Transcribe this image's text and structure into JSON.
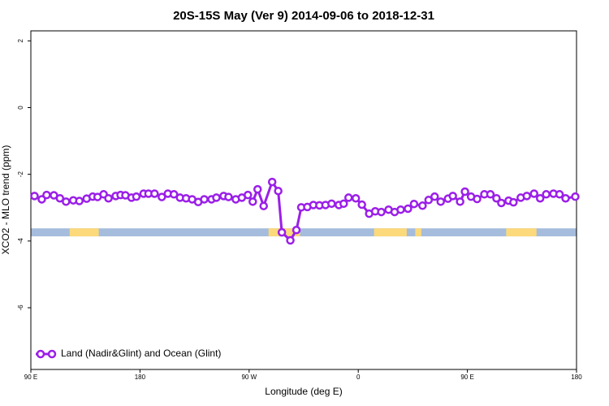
{
  "chart_data": {
    "type": "line",
    "title": "20S-15S May (Ver 9)   2014-09-06 to 2018-12-31",
    "xlabel": "Longitude (deg E)",
    "ylabel": "XCO2 - MLO trend (ppm)",
    "xlim": [
      90,
      540
    ],
    "ylim": [
      -7.85,
      2.3
    ],
    "xticks": [
      {
        "value": 90,
        "label": "90 E"
      },
      180,
      {
        "value": 270,
        "label": "90 W"
      },
      {
        "value": 360,
        "label": "0"
      },
      {
        "value": 450,
        "label": "90 E"
      },
      {
        "value": 540,
        "label": "180"
      }
    ],
    "yticks": [
      2,
      0,
      -2,
      -4,
      -6
    ],
    "legend": "bottom-left",
    "x": [
      93,
      99,
      103,
      109,
      114,
      119,
      125,
      130,
      136,
      141,
      145,
      150,
      154,
      160,
      164,
      168,
      173,
      177,
      183,
      187,
      192,
      198,
      203,
      208,
      213,
      218,
      223,
      228,
      233,
      239,
      243,
      249,
      253,
      259,
      264,
      269,
      273,
      277,
      282,
      289,
      294,
      297,
      304,
      309,
      313,
      318,
      323,
      328,
      333,
      338,
      344,
      348,
      352,
      358,
      363,
      369,
      374,
      379,
      385,
      390,
      395,
      401,
      406,
      413,
      418,
      423,
      428,
      434,
      438,
      444,
      448,
      453,
      458,
      464,
      469,
      474,
      478,
      484,
      488,
      494,
      499,
      505,
      510,
      515,
      521,
      526,
      531,
      539
    ],
    "series": [
      {
        "name": "Land (Nadir&Glint) and Ocean (Glint)",
        "color": "#9b1fe8",
        "values": [
          -2.65,
          -2.75,
          -2.62,
          -2.63,
          -2.72,
          -2.82,
          -2.78,
          -2.8,
          -2.73,
          -2.67,
          -2.68,
          -2.6,
          -2.72,
          -2.65,
          -2.62,
          -2.63,
          -2.7,
          -2.67,
          -2.58,
          -2.58,
          -2.58,
          -2.68,
          -2.58,
          -2.6,
          -2.7,
          -2.72,
          -2.75,
          -2.83,
          -2.75,
          -2.75,
          -2.7,
          -2.65,
          -2.68,
          -2.75,
          -2.7,
          -2.62,
          -2.82,
          -2.45,
          -2.95,
          -2.23,
          -2.5,
          -3.74,
          -3.98,
          -3.67,
          -2.99,
          -2.98,
          -2.92,
          -2.93,
          -2.92,
          -2.88,
          -2.92,
          -2.88,
          -2.7,
          -2.72,
          -2.91,
          -3.18,
          -3.11,
          -3.13,
          -3.06,
          -3.13,
          -3.06,
          -3.03,
          -2.89,
          -2.94,
          -2.77,
          -2.67,
          -2.82,
          -2.73,
          -2.65,
          -2.82,
          -2.52,
          -2.67,
          -2.74,
          -2.6,
          -2.6,
          -2.72,
          -2.86,
          -2.79,
          -2.84,
          -2.7,
          -2.65,
          -2.58,
          -2.72,
          -2.6,
          -2.58,
          -2.6,
          -2.72,
          -2.67
        ]
      }
    ],
    "band": {
      "y": [
        -3.86,
        -3.62
      ],
      "ocean_color": "#a5bcdc",
      "land_color": "#fcd97a",
      "land_spans": [
        [
          122,
          146
        ],
        [
          286,
          312
        ],
        [
          373,
          400
        ],
        [
          407,
          412
        ],
        [
          482,
          507
        ]
      ]
    }
  }
}
